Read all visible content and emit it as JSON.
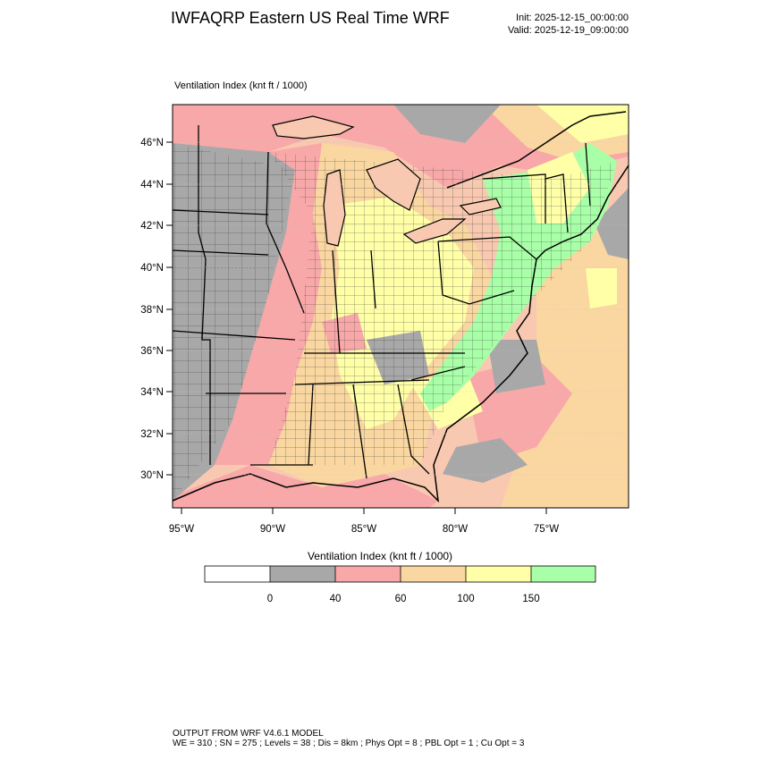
{
  "header": {
    "title": "IWFAQRP Eastern US Real Time WRF",
    "init": "Init: 2025-12-15_00:00:00",
    "valid": "Valid: 2025-12-19_09:00:00"
  },
  "field": {
    "label": "Ventilation Index   (knt ft / 1000)"
  },
  "axes": {
    "lat_labels": [
      "46°N",
      "44°N",
      "42°N",
      "40°N",
      "38°N",
      "36°N",
      "34°N",
      "32°N",
      "30°N"
    ],
    "lon_labels": [
      "95°W",
      "90°W",
      "85°W",
      "80°W",
      "75°W"
    ]
  },
  "colorbar": {
    "title": "Ventilation Index  (knt ft / 1000)",
    "bins": [
      {
        "color": "#ffffff"
      },
      {
        "color": "#a8a8a8"
      },
      {
        "color": "#f8a8a8"
      },
      {
        "color": "#fad7a0"
      },
      {
        "color": "#ffffa8"
      },
      {
        "color": "#a8ffa8"
      }
    ],
    "ticks": [
      "0",
      "40",
      "60",
      "100",
      "150"
    ]
  },
  "footer": {
    "line1": "OUTPUT FROM WRF V4.6.1 MODEL",
    "line2": "WE = 310 ; SN = 275 ; Levels = 38 ; Dis = 8km ; Phys Opt = 8 ; PBL Opt = 1 ; Cu Opt = 3"
  }
}
